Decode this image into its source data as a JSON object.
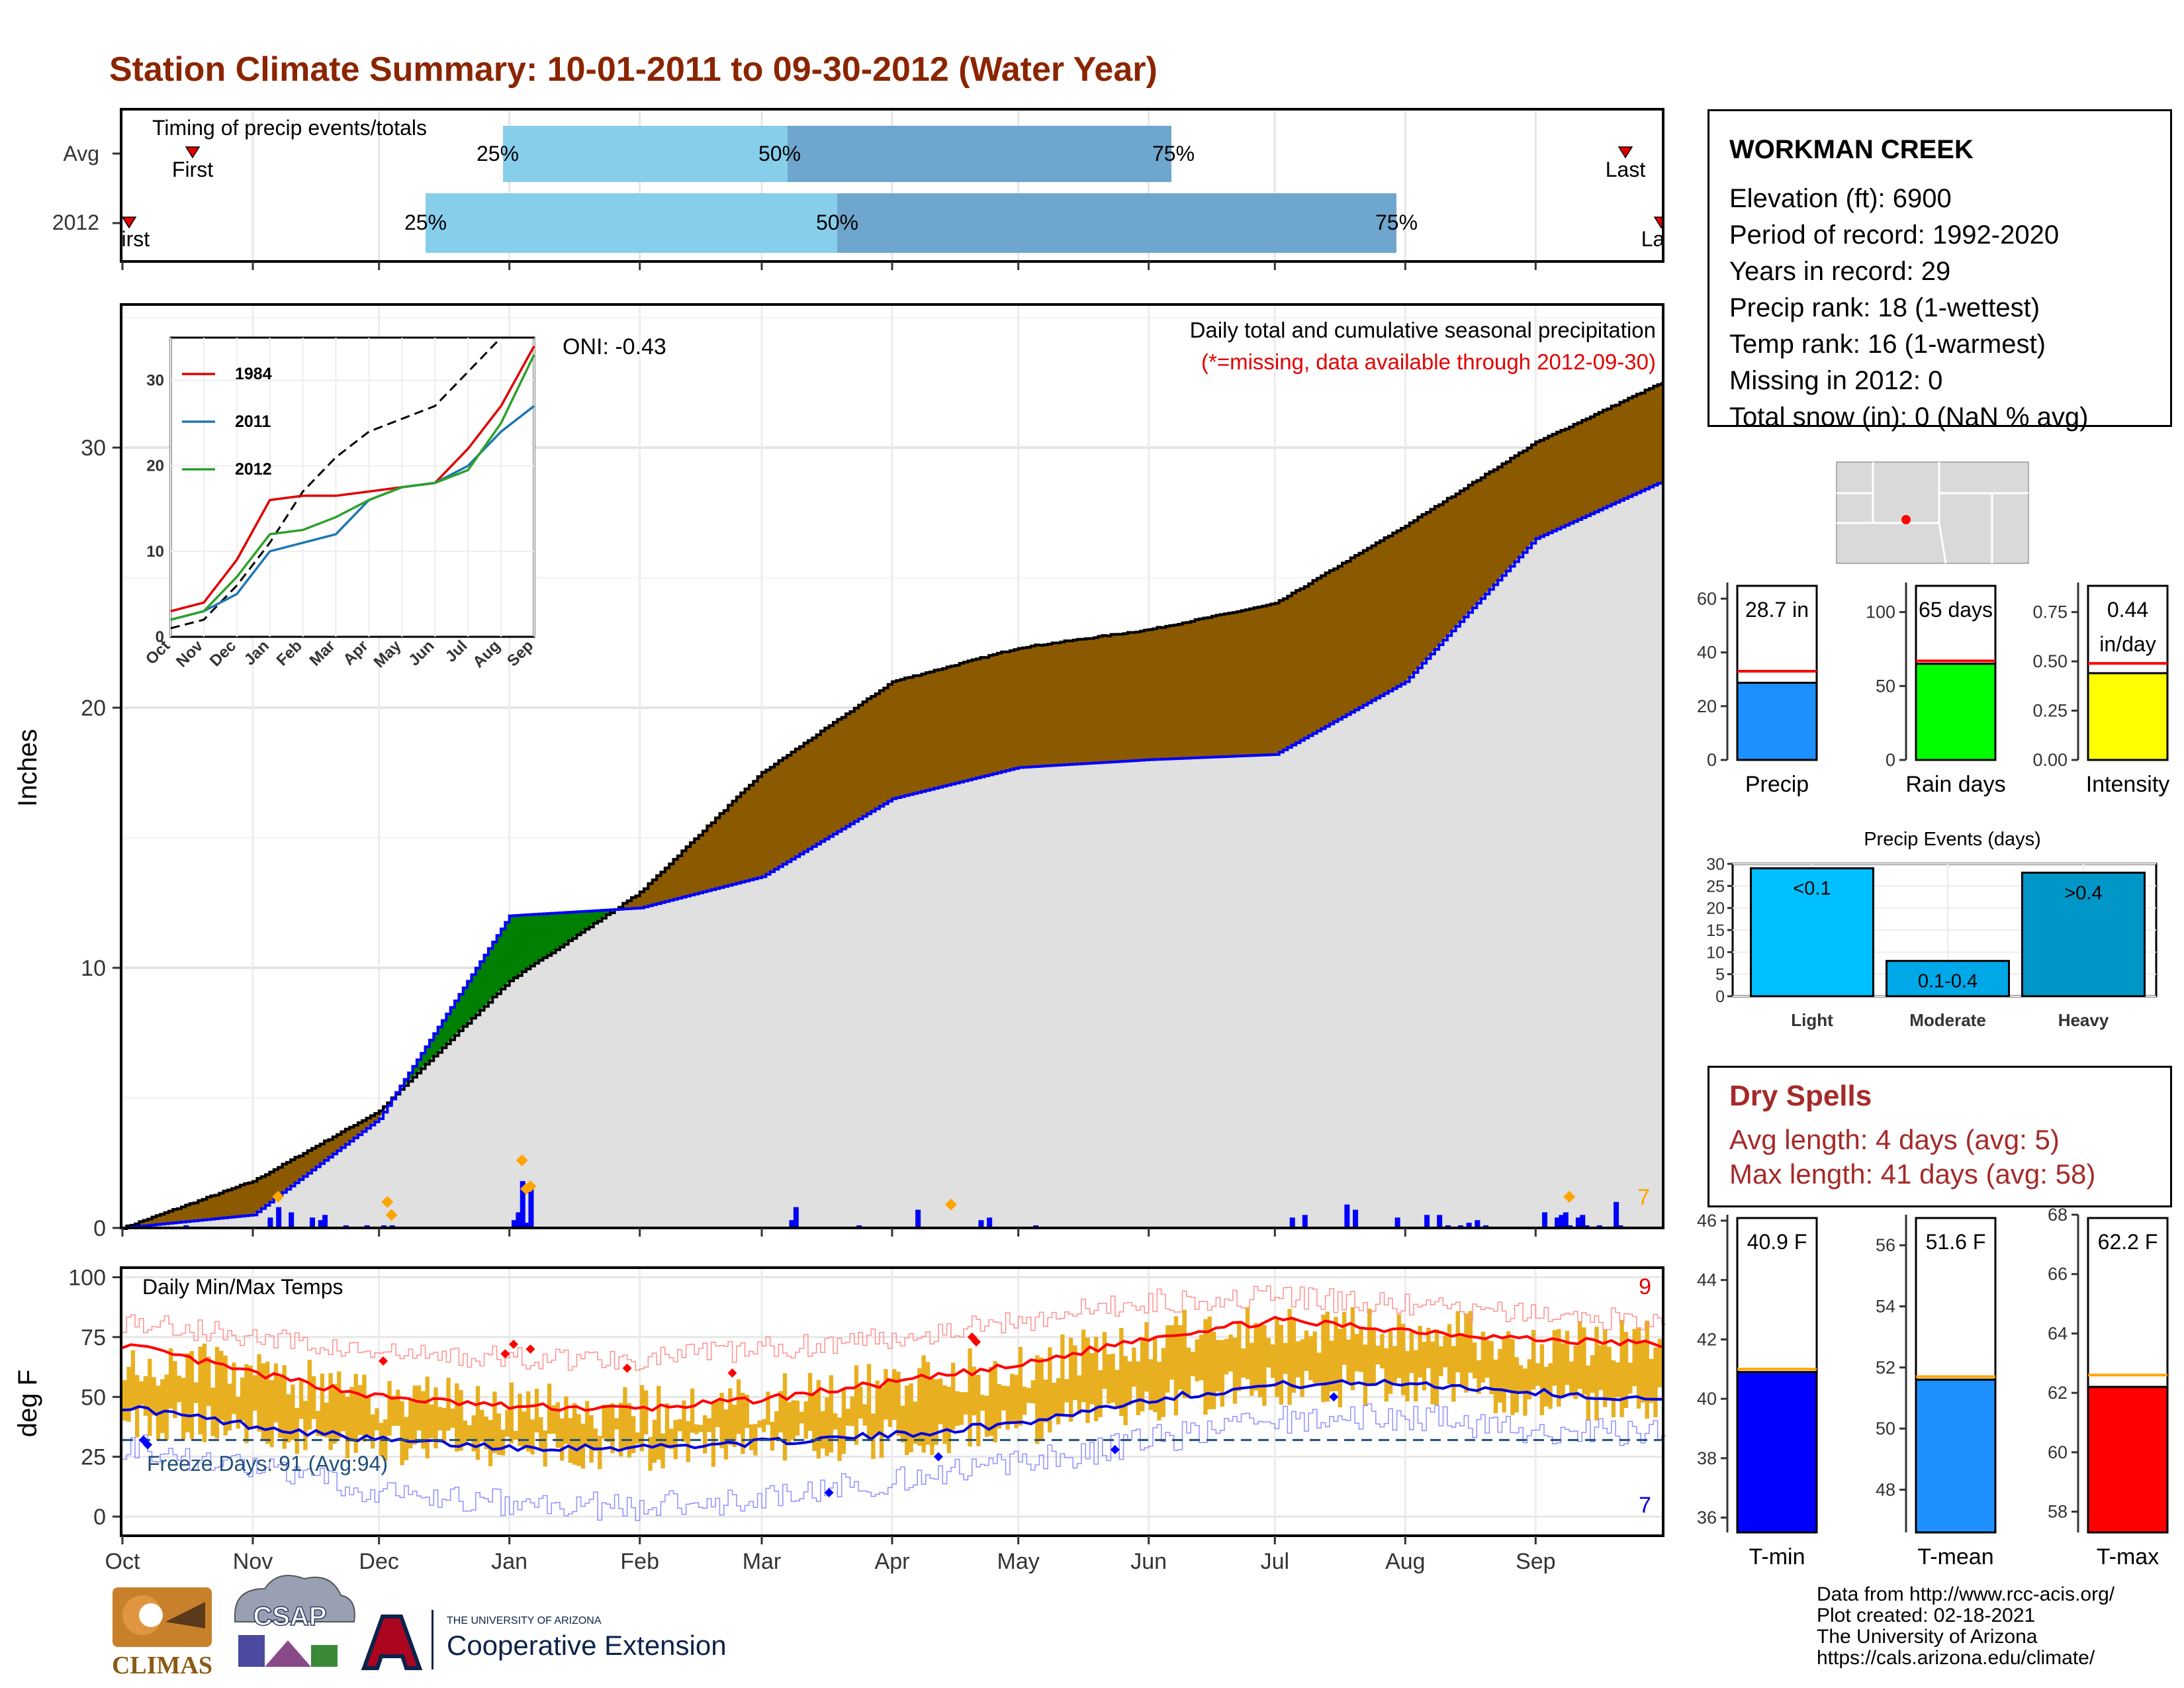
{
  "title": "Station Climate Summary: 10-01-2011 to 09-30-2012 (Water Year)",
  "colors": {
    "title": "#8b2500",
    "dry": "#a52a2a",
    "brown": "#8b5a00",
    "green": "#008000",
    "bluebar": "#0000ff",
    "orange": "#ffa500",
    "tminfill": "#0000ff",
    "tmeanfill": "#1e90ff",
    "tmaxfill": "#ff0000",
    "band": "#e8b020",
    "q_light": "#87ceeb",
    "q_dark": "#6fa6cd"
  },
  "timing": {
    "label": "Timing of precip events/totals",
    "rows": [
      {
        "name": "Avg",
        "q25": "25%",
        "q50": "50%",
        "q75": "75%",
        "first": "First",
        "last": "Last"
      },
      {
        "name": "2012",
        "q25": "25%",
        "q50": "50%",
        "q75": "75%",
        "first": "First",
        "last": "Last"
      }
    ]
  },
  "station": {
    "name": "WORKMAN CREEK",
    "lines": [
      "Elevation (ft): 6900",
      "Period of record: 1992-2020",
      "Years in record: 29",
      "Precip rank: 18 (1-wettest)",
      "Temp rank: 16 (1-warmest)",
      "Missing in 2012: 0",
      "Total snow (in): 0 (NaN % avg)"
    ]
  },
  "main": {
    "title": "Daily total and cumulative seasonal precipitation",
    "subtitle": "(*=missing, data available through 2012-09-30)",
    "ylabel": "Inches",
    "oni": "ONI: -0.43",
    "count": "7"
  },
  "temps": {
    "label": "Daily Min/Max Temps",
    "ylabel": "deg F",
    "freeze": "Freeze Days: 91 (Avg:94)",
    "count_hi": "9",
    "count_lo": "7"
  },
  "months": [
    "Oct",
    "Nov",
    "Dec",
    "Jan",
    "Feb",
    "Mar",
    "Apr",
    "May",
    "Jun",
    "Jul",
    "Aug",
    "Sep"
  ],
  "dry_spells": {
    "title": "Dry Spells",
    "avg": "Avg length: 4 days (avg: 5)",
    "max": "Max length: 41 days (avg: 58)"
  },
  "events": {
    "title": "Precip Events (days)"
  },
  "credits": [
    "Data from http://www.rcc-acis.org/",
    "Plot created: 02-18-2021",
    "The University of Arizona",
    "https://cals.arizona.edu/climate/"
  ],
  "logos": {
    "climas": "CLIMAS",
    "csap": "CSAP",
    "ua_top": "THE UNIVERSITY OF ARIZONA",
    "ua_main": "Cooperative Extension"
  },
  "chart_data": [
    {
      "type": "area",
      "name": "cumulative precipitation",
      "x": [
        "Oct",
        "Nov",
        "Dec",
        "Jan",
        "Feb",
        "Mar",
        "Apr",
        "May",
        "Jun",
        "Jul",
        "Aug",
        "Sep",
        "Sep-30"
      ],
      "series": [
        {
          "values": [
            0,
            1.8,
            4.5,
            9.5,
            12.9,
            17.5,
            21.0,
            22.3,
            23.0,
            24.0,
            27.0,
            30.2,
            32.5
          ]
        },
        {
          "values": [
            0,
            0.5,
            4.2,
            12.0,
            12.3,
            13.5,
            16.5,
            17.7,
            18.0,
            18.2,
            21.0,
            26.5,
            28.7
          ]
        }
      ],
      "ylim": [
        0,
        35.5
      ]
    },
    {
      "type": "line",
      "name": "inset cumulative",
      "x": [
        "Oct",
        "Nov",
        "Dec",
        "Jan",
        "Feb",
        "Mar",
        "Apr",
        "May",
        "Jun",
        "Jul",
        "Aug",
        "Sep"
      ],
      "series": [
        {
          "name": "1984",
          "values": [
            3,
            4,
            9,
            16,
            16.5,
            16.5,
            17,
            17.5,
            18,
            22,
            27,
            34
          ]
        },
        {
          "name": "2011",
          "values": [
            2,
            3,
            5,
            10,
            11,
            12,
            16,
            17.5,
            18,
            20,
            24,
            27
          ]
        },
        {
          "name": "2012",
          "values": [
            2,
            3,
            7,
            12,
            12.5,
            14,
            16,
            17.5,
            18,
            19.5,
            25,
            33
          ]
        }
      ],
      "ylim": [
        0,
        35
      ]
    },
    {
      "type": "bar",
      "name": "Precip",
      "categories": [
        "Precip"
      ],
      "values": [
        28.7
      ],
      "avg": 33,
      "label": "28.7 in",
      "ylim": [
        0,
        66
      ],
      "ticks": [
        0,
        20,
        40,
        60
      ]
    },
    {
      "type": "bar",
      "name": "Rain days",
      "categories": [
        "Rain days"
      ],
      "values": [
        65
      ],
      "avg": 67,
      "label": "65 days",
      "ylim": [
        0,
        120
      ],
      "ticks": [
        0,
        50,
        100
      ]
    },
    {
      "type": "bar",
      "name": "Intensity",
      "categories": [
        "Intensity"
      ],
      "values": [
        0.44
      ],
      "avg": 0.49,
      "label": "0.44 in/day",
      "ylim": [
        0,
        0.9
      ],
      "ticks": [
        "0.00",
        "0.25",
        "0.50",
        "0.75"
      ]
    },
    {
      "type": "bar",
      "name": "Precip Events (days)",
      "categories": [
        "Light",
        "Moderate",
        "Heavy"
      ],
      "values": [
        29,
        8,
        28
      ],
      "labels": [
        "<0.1",
        "0.1-0.4",
        ">0.4"
      ],
      "ylim": [
        0,
        30
      ],
      "ticks": [
        0,
        5,
        10,
        15,
        20,
        25,
        30
      ]
    },
    {
      "type": "bar",
      "name": "T-min",
      "categories": [
        "T-min"
      ],
      "values": [
        40.9
      ],
      "avg": 41.0,
      "label": "40.9 F",
      "ylim": [
        35.5,
        46.2
      ],
      "ticks": [
        36,
        38,
        40,
        42,
        44,
        46
      ]
    },
    {
      "type": "bar",
      "name": "T-mean",
      "categories": [
        "T-mean"
      ],
      "values": [
        51.6
      ],
      "avg": 51.7,
      "label": "51.6 F",
      "ylim": [
        46.6,
        57
      ],
      "ticks": [
        48,
        50,
        52,
        54,
        56
      ]
    },
    {
      "type": "bar",
      "name": "T-max",
      "categories": [
        "T-max"
      ],
      "values": [
        62.2
      ],
      "avg": 62.6,
      "label": "62.2 F",
      "ylim": [
        57.3,
        68
      ],
      "ticks": [
        58,
        60,
        62,
        64,
        66,
        68
      ]
    }
  ]
}
